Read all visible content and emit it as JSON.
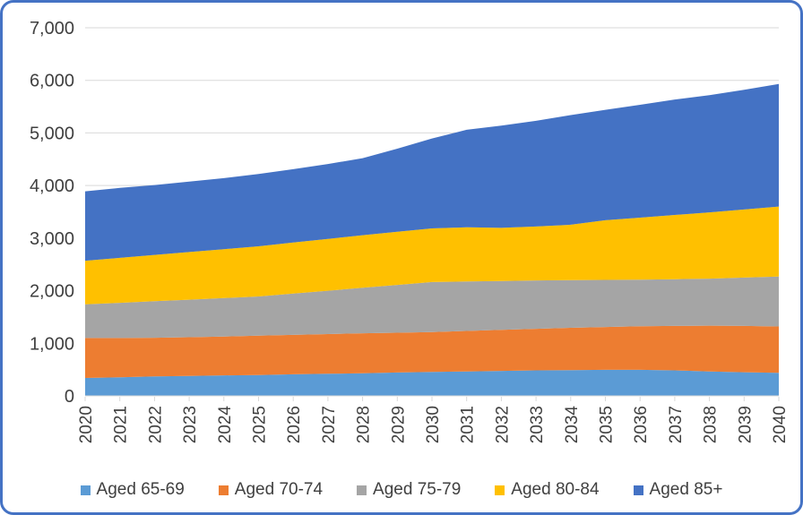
{
  "frame": {
    "border_color": "#4472C4",
    "background_color": "#FFFFFF"
  },
  "chart_data": {
    "type": "area",
    "stacked": true,
    "title": "",
    "xlabel": "",
    "ylabel": "",
    "x": [
      2020,
      2021,
      2022,
      2023,
      2024,
      2025,
      2026,
      2027,
      2028,
      2029,
      2030,
      2031,
      2032,
      2033,
      2034,
      2035,
      2036,
      2037,
      2038,
      2039,
      2040
    ],
    "series": [
      {
        "name": "Aged 65-69",
        "color": "#5B9BD5",
        "values": [
          340,
          355,
          370,
          380,
          390,
          395,
          410,
          420,
          430,
          445,
          455,
          465,
          475,
          485,
          490,
          495,
          495,
          485,
          465,
          450,
          440
        ]
      },
      {
        "name": "Aged 70-74",
        "color": "#ED7D31",
        "values": [
          760,
          745,
          735,
          735,
          740,
          750,
          750,
          755,
          760,
          755,
          760,
          770,
          780,
          790,
          805,
          815,
          830,
          845,
          870,
          880,
          880
        ]
      },
      {
        "name": "Aged 75-79",
        "color": "#A5A5A5",
        "values": [
          640,
          670,
          695,
          715,
          730,
          745,
          785,
          825,
          865,
          910,
          950,
          940,
          930,
          920,
          905,
          895,
          885,
          890,
          895,
          920,
          950
        ]
      },
      {
        "name": "Aged 80-84",
        "color": "#FFC000",
        "values": [
          830,
          855,
          880,
          905,
          930,
          955,
          970,
          985,
          1000,
          1010,
          1020,
          1030,
          1010,
          1025,
          1055,
          1135,
          1180,
          1220,
          1260,
          1295,
          1330
        ]
      },
      {
        "name": "Aged 85+",
        "color": "#4472C4",
        "values": [
          1320,
          1330,
          1330,
          1340,
          1350,
          1375,
          1395,
          1425,
          1465,
          1580,
          1710,
          1855,
          1945,
          2010,
          2085,
          2100,
          2145,
          2195,
          2230,
          2275,
          2330
        ]
      }
    ],
    "ylim": [
      0,
      7000
    ],
    "ytick_step": 1000,
    "ytick_labels": [
      "0",
      "1,000",
      "2,000",
      "3,000",
      "4,000",
      "5,000",
      "6,000",
      "7,000"
    ],
    "grid": true,
    "gridline_color": "#D9D9D9",
    "axis_line_color": "#D9D9D9",
    "axis_text_color": "#404040",
    "legend_position": "bottom",
    "x_labels_rotated_degrees": 90
  }
}
